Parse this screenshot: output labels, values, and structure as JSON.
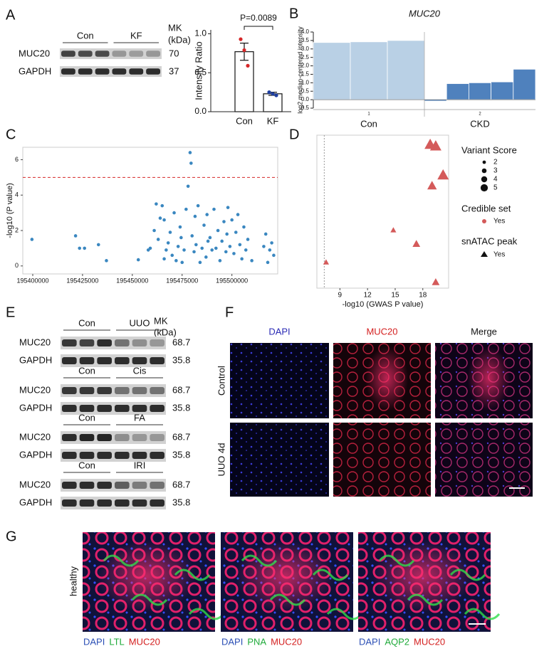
{
  "panel_labels": [
    "A",
    "B",
    "C",
    "D",
    "E",
    "F",
    "G"
  ],
  "panel_a_blot": {
    "lanes": [
      "Con",
      "KF"
    ],
    "mw_header": [
      "MK",
      "(kDa)"
    ],
    "rows": [
      {
        "label": "MUC20",
        "mw": 70
      },
      {
        "label": "GAPDH",
        "mw": 37
      }
    ]
  },
  "panel_e_blots": {
    "mw_header": [
      "MK",
      "(kDa)"
    ],
    "groups": [
      {
        "lanes": [
          "Con",
          "UUO"
        ],
        "rows": [
          {
            "label": "MUC20",
            "mw": 68.7
          },
          {
            "label": "GAPDH",
            "mw": 35.8
          }
        ]
      },
      {
        "lanes": [
          "Con",
          "Cis"
        ],
        "rows": [
          {
            "label": "MUC20",
            "mw": 68.7
          },
          {
            "label": "GAPDH",
            "mw": 35.8
          }
        ]
      },
      {
        "lanes": [
          "Con",
          "FA"
        ],
        "rows": [
          {
            "label": "MUC20",
            "mw": 68.7
          },
          {
            "label": "GAPDH",
            "mw": 35.8
          }
        ]
      },
      {
        "lanes": [
          "Con",
          "IRI"
        ],
        "rows": [
          {
            "label": "MUC20",
            "mw": 68.7
          },
          {
            "label": "GAPDH",
            "mw": 35.8
          }
        ]
      }
    ]
  },
  "panel_f": {
    "columns": [
      "DAPI",
      "MUC20",
      "Merge"
    ],
    "rows": [
      "Control",
      "UUO 4d"
    ]
  },
  "panel_g": {
    "row_label": "healthy",
    "captions": [
      [
        "DAPI",
        "LTL",
        "MUC20"
      ],
      [
        "DAPI",
        "PNA",
        "MUC20"
      ],
      [
        "DAPI",
        "AQP2",
        "MUC20"
      ]
    ]
  },
  "chart_data": [
    {
      "type": "bar",
      "y_label": "Intensity Ratio",
      "categories": [
        "Con",
        "KF"
      ],
      "values": [
        0.77,
        0.23
      ],
      "errors": [
        0.11,
        0.02
      ],
      "points": [
        [
          0.93,
          0.79,
          0.59
        ],
        [
          0.25,
          0.23,
          0.21
        ]
      ],
      "point_colors": [
        "#d62728",
        "#1f3fa0"
      ],
      "color": "#ffffff",
      "annotation": "P=0.0089",
      "ylim": [
        0,
        1.05
      ],
      "yticks": [
        {
          "value": 0,
          "label": "0.0"
        },
        0.5,
        {
          "value": 1,
          "label": "1.0"
        }
      ]
    },
    {
      "type": "bar",
      "title": "MUC20",
      "y_label": "log2 median-centered intensity",
      "groups": [
        {
          "label": "Con",
          "tick": "1",
          "color": "#b9d0e5",
          "values": [
            3.38,
            3.42,
            3.5
          ]
        },
        {
          "label": "CKD",
          "tick": "2",
          "color": "#4f81bd",
          "values": [
            -0.08,
            0.95,
            1.0,
            1.05,
            1.8
          ]
        }
      ],
      "ylim": [
        -0.5,
        4.0
      ],
      "yticks": [
        -0.5,
        {
          "value": 0,
          "label": "0.0"
        },
        0.5,
        {
          "value": 1,
          "label": "1.0"
        },
        1.5,
        {
          "value": 2,
          "label": "2.0"
        },
        2.5,
        {
          "value": 3,
          "label": "3.0"
        },
        3.5,
        {
          "value": 4,
          "label": "4.0"
        }
      ]
    },
    {
      "type": "scatter",
      "y_label": "-log10 (P value)",
      "color": "#3a87c0",
      "frame": true,
      "hline": 5.0,
      "hline_color": "#d62728",
      "x": [
        195399600,
        195421500,
        195423500,
        195426000,
        195433000,
        195437000,
        195453000,
        195458000,
        195459000,
        195461000,
        195462000,
        195463000,
        195464000,
        195465000,
        195466000,
        195467000,
        195468000,
        195469000,
        195470000,
        195471000,
        195472000,
        195473000,
        195474000,
        195475000,
        195476000,
        195477000,
        195478000,
        195479000,
        195479500,
        195480000,
        195481000,
        195481500,
        195482000,
        195483000,
        195484000,
        195485000,
        195486000,
        195487000,
        195488000,
        195489000,
        195490000,
        195491000,
        195492000,
        195493000,
        195494000,
        195495000,
        195496000,
        195497000,
        195498000,
        195499000,
        195500000,
        195501000,
        195502000,
        195503000,
        195504000,
        195505000,
        195506000,
        195507000,
        195508000,
        195510000,
        195516000,
        195517000,
        195518000,
        195519000,
        195520000,
        195521000,
        195466000,
        195474500,
        195487500,
        195497500
      ],
      "y": [
        1.5,
        1.7,
        1.0,
        1.0,
        1.2,
        0.3,
        0.35,
        0.9,
        1.0,
        2.0,
        3.5,
        1.5,
        2.7,
        3.4,
        2.6,
        0.9,
        1.3,
        1.9,
        0.6,
        3.0,
        0.3,
        1.1,
        2.2,
        0.2,
        0.9,
        3.2,
        4.5,
        6.4,
        5.8,
        1.7,
        0.8,
        2.8,
        1.2,
        3.4,
        0.2,
        1.0,
        2.3,
        0.5,
        1.4,
        1.6,
        0.9,
        3.2,
        1.0,
        2.0,
        0.3,
        1.4,
        2.5,
        0.8,
        3.3,
        1.1,
        2.6,
        0.7,
        1.9,
        2.9,
        1.2,
        0.4,
        2.2,
        0.9,
        1.5,
        0.3,
        1.1,
        1.8,
        0.2,
        0.9,
        1.3,
        0.6,
        0.4,
        1.6,
        2.9,
        1.8
      ],
      "xlim": [
        195395000,
        195523000
      ],
      "ylim": [
        -0.45,
        6.7
      ],
      "xticks": [
        195400000,
        195425000,
        195450000,
        195475000,
        195500000
      ],
      "yticks": [
        0,
        2,
        4,
        6
      ]
    },
    {
      "type": "scatter",
      "x_label": "-log10 (GWAS P value)",
      "color": "#d45a5a",
      "marker": "triangle",
      "frame": true,
      "vline": 7.3,
      "vline_color": "#999999",
      "x": [
        18.8,
        19.4,
        20.2,
        19.0,
        14.8,
        17.3,
        7.5,
        19.4
      ],
      "y": [
        0.94,
        0.93,
        0.74,
        0.67,
        0.38,
        0.29,
        0.17,
        0.04
      ],
      "size": [
        5,
        5,
        5,
        4,
        2,
        3,
        2,
        3
      ],
      "xlim": [
        6.5,
        20.8
      ],
      "ylim": [
        0,
        1
      ],
      "xticks": [
        9,
        12,
        15,
        18
      ],
      "legend": {
        "size_title": "Variant Score",
        "sizes": [
          2,
          3,
          4,
          5
        ],
        "color_title": "Credible set",
        "color_label": "Yes",
        "shape_title": "snATAC peak",
        "shape_label": "Yes"
      }
    }
  ]
}
